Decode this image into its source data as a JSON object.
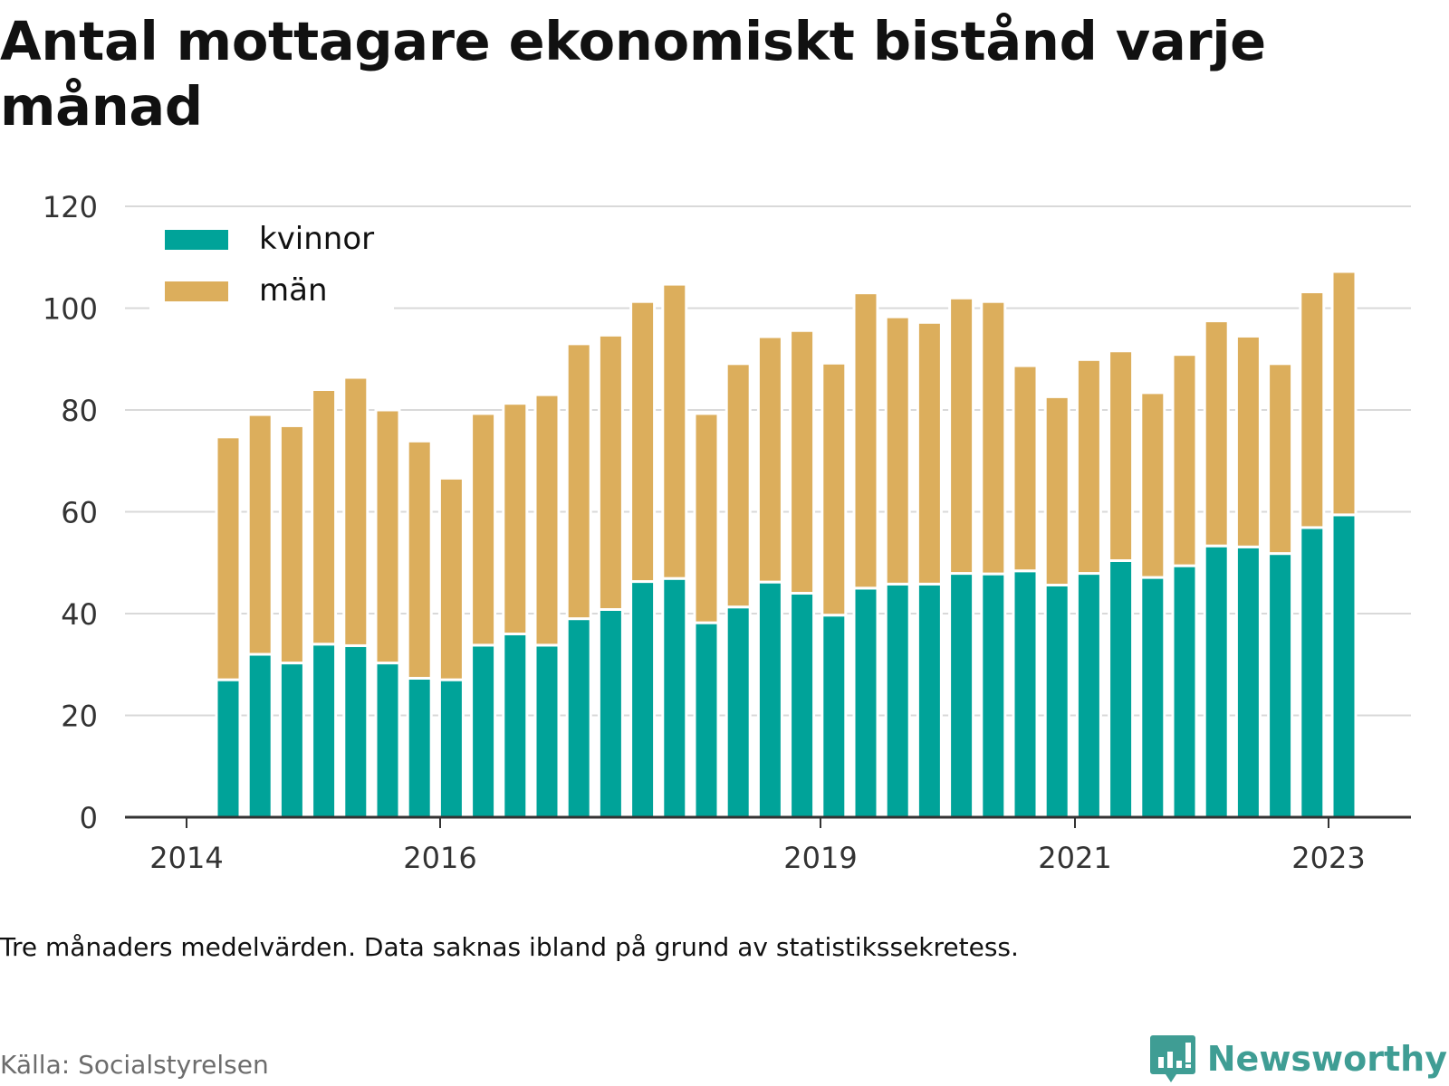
{
  "title": "Antal mottagare ekonomiskt bistånd varje månad",
  "note": "Tre månaders medelvärden. Data saknas ibland på grund av statistikssekretess.",
  "source": "Källa: Socialstyrelsen",
  "brand": {
    "name": "Newsworthy",
    "logo_icon": "bar-chart-speech-bubble-icon"
  },
  "colors": {
    "kvinnor": "#00a399",
    "man": "#dcae5c",
    "grid": "#d9d9d9",
    "axis": "#333333"
  },
  "chart_data": {
    "type": "bar",
    "stacked": true,
    "ylim": [
      0,
      120
    ],
    "yticks": [
      0,
      20,
      40,
      60,
      80,
      100,
      120
    ],
    "xticks": [
      "2014",
      "2016",
      "2019",
      "2021",
      "2023"
    ],
    "legend_position": "top-left",
    "grid": true,
    "series": [
      {
        "name": "kvinnor",
        "values": [
          27,
          32,
          30.3,
          34,
          33.7,
          30.3,
          27.3,
          27,
          33.8,
          36,
          33.8,
          39,
          40.8,
          46.3,
          46.9,
          38.2,
          41.3,
          46.2,
          44,
          39.7,
          45,
          45.8,
          45.8,
          47.9,
          47.8,
          48.4,
          45.6,
          47.9,
          50.4,
          47.1,
          49.4,
          53.3,
          53.1,
          51.8,
          56.9,
          59.4
        ]
      },
      {
        "name": "män",
        "values": [
          47.7,
          47.1,
          46.6,
          50,
          52.7,
          49.7,
          46.6,
          39.6,
          45.5,
          45.3,
          49.2,
          54,
          53.9,
          55,
          57.8,
          41.1,
          47.8,
          48.2,
          51.6,
          49.5,
          58,
          52.5,
          51.4,
          54.1,
          53.5,
          40.3,
          37,
          42,
          41.2,
          36.3,
          41.5,
          44.2,
          41.4,
          37.3,
          46.3,
          47.8
        ]
      }
    ]
  }
}
